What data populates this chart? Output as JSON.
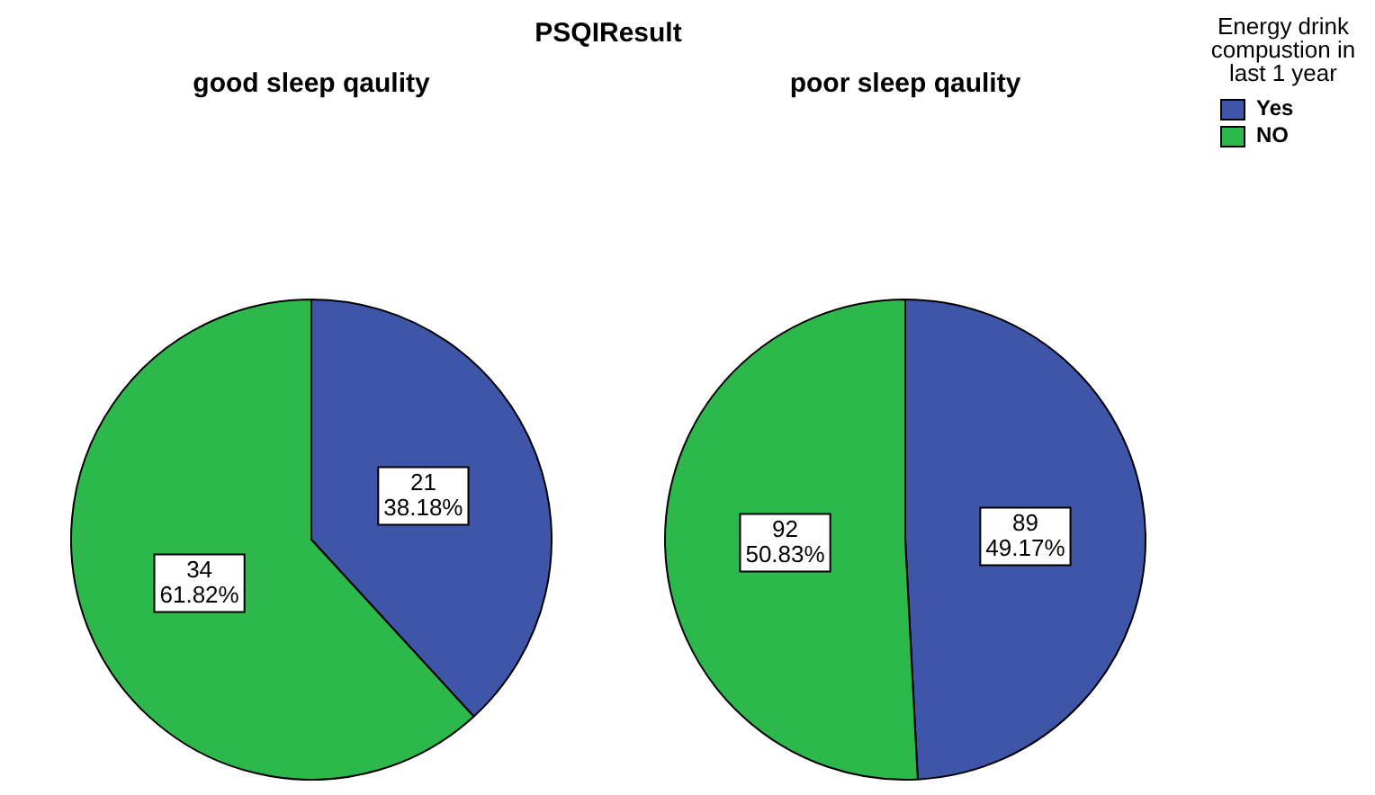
{
  "chart_data": [
    {
      "type": "pie",
      "title": "good sleep qaulity",
      "annotations": [
        "PSQIResult"
      ],
      "categories": [
        null,
        null
      ],
      "values": [
        21,
        34
      ],
      "colors": [
        "#3f56a8",
        "#2db84b"
      ],
      "value_labels": [
        "21\n38.18%",
        "34\n61.82%"
      ],
      "legend": false
    },
    {
      "type": "pie",
      "title": "poor sleep qaulity",
      "categories": [
        "Yes",
        "NO"
      ],
      "values": [
        89,
        92
      ],
      "colors": [
        "#3f56a8",
        "#2db84b"
      ],
      "value_labels": [
        "89\n49.17%",
        "92\n50.83%"
      ],
      "legend": "top right",
      "legend_title": "Energy drink compustion in last 1 year"
    }
  ]
}
